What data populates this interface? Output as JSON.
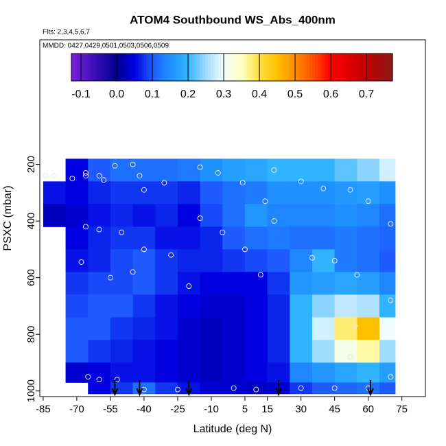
{
  "chart_data": {
    "type": "heatmap",
    "title": "ATOM4 Southbound WS_Abs_400nm",
    "subtitle": "Flts: 2,3,4,5,6,7",
    "annotation": "MMDD: 0427,0429,0501,0503,0506,0509",
    "xlabel": "Latitude (deg N)",
    "ylabel": "PSXC (mbar)",
    "xlim": [
      -86.5,
      85.5
    ],
    "ylim": [
      1020,
      -240
    ],
    "xticks": [
      -85,
      -70,
      -55,
      -40,
      -25,
      -10,
      5,
      15,
      30,
      45,
      60,
      75
    ],
    "yticks": [
      200,
      400,
      600,
      800,
      1000
    ],
    "lat_edges": [
      -85,
      -75,
      -65,
      -55,
      -45,
      -35,
      -25,
      -15,
      -5,
      5,
      15,
      25,
      35,
      45,
      55,
      65,
      72
    ],
    "p_edges": [
      180,
      260,
      340,
      420,
      500,
      580,
      660,
      740,
      820,
      900,
      970,
      1010
    ],
    "z": [
      [
        null,
        0.05,
        0.1,
        0.12,
        0.12,
        0.12,
        0.13,
        0.15,
        0.17,
        0.18,
        0.2,
        0.2,
        0.2,
        0.22,
        0.24,
        0.28
      ],
      [
        0.06,
        0.05,
        0.07,
        0.08,
        0.08,
        0.08,
        0.07,
        0.1,
        0.12,
        0.13,
        0.15,
        0.15,
        0.15,
        0.16,
        0.17,
        0.15
      ],
      [
        0.03,
        0.04,
        0.06,
        0.07,
        0.06,
        0.07,
        0.05,
        0.09,
        0.12,
        0.16,
        0.14,
        0.14,
        0.14,
        0.15,
        0.14,
        0.12
      ],
      [
        null,
        0.05,
        0.07,
        0.08,
        0.08,
        0.06,
        0.06,
        0.07,
        0.1,
        0.12,
        0.13,
        0.12,
        0.12,
        0.13,
        0.12,
        0.11
      ],
      [
        null,
        0.06,
        0.07,
        0.09,
        0.1,
        0.08,
        0.07,
        0.07,
        0.08,
        0.09,
        0.1,
        0.14,
        0.2,
        0.13,
        0.12,
        0.1
      ],
      [
        null,
        0.08,
        0.09,
        0.09,
        0.1,
        0.08,
        0.06,
        0.05,
        0.05,
        0.05,
        0.08,
        0.16,
        0.17,
        0.18,
        0.17,
        0.14
      ],
      [
        null,
        0.09,
        0.1,
        0.1,
        0.08,
        0.06,
        0.05,
        0.04,
        0.04,
        0.05,
        0.07,
        0.2,
        0.24,
        0.27,
        0.26,
        0.2
      ],
      [
        null,
        0.1,
        0.1,
        0.08,
        0.07,
        0.06,
        0.04,
        0.03,
        0.04,
        0.05,
        0.07,
        0.2,
        0.28,
        0.38,
        0.45,
        0.3
      ],
      [
        null,
        0.1,
        0.08,
        0.07,
        0.06,
        0.05,
        0.04,
        0.03,
        0.04,
        0.05,
        0.07,
        0.2,
        0.25,
        0.32,
        0.36,
        0.25
      ],
      [
        null,
        0.04,
        0.05,
        0.06,
        0.06,
        0.05,
        0.04,
        0.03,
        0.04,
        0.05,
        0.06,
        0.14,
        0.16,
        0.18,
        0.2,
        0.17
      ],
      [
        null,
        null,
        0.05,
        0.08,
        0.12,
        0.08,
        0.06,
        0.04,
        0.04,
        0.03,
        0.04,
        0.08,
        0.1,
        0.11,
        0.12,
        0.1
      ]
    ],
    "colorbar_ticks": [
      -0.1,
      {
        "value": 0,
        "label": "0.0"
      },
      0.1,
      0.2,
      0.3,
      0.4,
      0.5,
      0.6,
      0.7
    ],
    "colorscale": [
      [
        -0.127,
        "#7b1fe0"
      ],
      [
        0,
        "#000090"
      ],
      [
        0.05,
        "#0000e0"
      ],
      [
        0.1,
        "#1e5cff"
      ],
      [
        0.15,
        "#1e90ff"
      ],
      [
        0.2,
        "#30b4ff"
      ],
      [
        0.25,
        "#a0dcff"
      ],
      [
        0.3,
        "#f0fcff"
      ],
      [
        0.35,
        "#ffffc0"
      ],
      [
        0.4,
        "#ffe040"
      ],
      [
        0.45,
        "#ffc000"
      ],
      [
        0.5,
        "#ff8c00"
      ],
      [
        0.55,
        "#ff5000"
      ],
      [
        0.6,
        "#ff0000"
      ],
      [
        0.7,
        "#c00000"
      ],
      [
        0.773,
        "#8b1a1a"
      ]
    ],
    "points": {
      "x": [
        -84,
        -80,
        -72,
        -66,
        -66,
        -60,
        -58,
        -53,
        -45,
        -42,
        -40,
        -31,
        -15,
        -7,
        4,
        14,
        18,
        30,
        40,
        52,
        60,
        68,
        -66,
        -60,
        -50,
        -40,
        -28,
        -15,
        -5,
        5,
        18,
        35,
        45,
        55,
        -55,
        -45,
        -20,
        12,
        -68,
        -65,
        -60,
        -52,
        -40,
        -25,
        0,
        10,
        30,
        45,
        60,
        70,
        70,
        70,
        52,
        54
      ],
      "y": [
        240,
        240,
        250,
        230,
        240,
        240,
        255,
        205,
        200,
        240,
        290,
        265,
        210,
        230,
        265,
        330,
        220,
        260,
        285,
        290,
        330,
        235,
        420,
        430,
        440,
        500,
        520,
        390,
        440,
        500,
        400,
        530,
        540,
        590,
        600,
        580,
        630,
        590,
        545,
        950,
        960,
        960,
        995,
        995,
        990,
        995,
        990,
        990,
        990,
        950,
        680,
        410,
        880,
        770
      ]
    },
    "arrows": [
      -53,
      -42,
      -20,
      20,
      61
    ]
  }
}
